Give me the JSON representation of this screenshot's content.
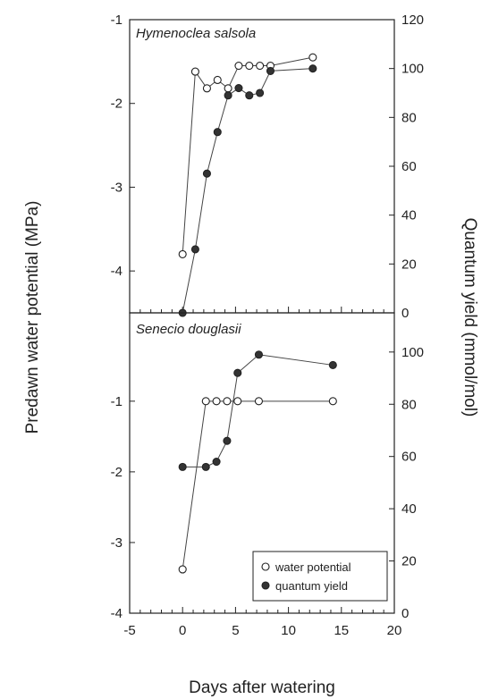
{
  "chart_data": [
    {
      "type": "scatter",
      "panel": "top",
      "title": "Hymenoclea salsola",
      "xlim": [
        -5,
        20
      ],
      "ylim_left": [
        -4.5,
        -1
      ],
      "ylim_right": [
        0,
        120
      ],
      "left_ticks": [
        -1,
        -2,
        -3,
        -4
      ],
      "right_ticks": [
        120,
        100,
        80,
        60,
        40,
        20,
        0
      ],
      "series": [
        {
          "name": "water potential",
          "axis": "left",
          "marker": "open-circle",
          "points": [
            [
              0,
              -3.8
            ],
            [
              1.2,
              -1.62
            ],
            [
              2.3,
              -1.82
            ],
            [
              3.3,
              -1.72
            ],
            [
              4.3,
              -1.82
            ],
            [
              5.3,
              -1.55
            ],
            [
              6.3,
              -1.55
            ],
            [
              7.3,
              -1.55
            ],
            [
              8.3,
              -1.55
            ],
            [
              12.3,
              -1.45
            ]
          ]
        },
        {
          "name": "quantum yield",
          "axis": "right",
          "marker": "filled-circle",
          "points": [
            [
              0,
              0
            ],
            [
              1.2,
              26
            ],
            [
              2.3,
              57
            ],
            [
              3.3,
              74
            ],
            [
              4.3,
              89
            ],
            [
              5.3,
              92
            ],
            [
              6.3,
              89
            ],
            [
              7.3,
              90
            ],
            [
              8.3,
              99
            ],
            [
              12.3,
              100
            ]
          ]
        }
      ]
    },
    {
      "type": "scatter",
      "panel": "bottom",
      "title": "Senecio douglasii",
      "xlim": [
        -5,
        20
      ],
      "ylim_left": [
        -4,
        0.25
      ],
      "ylim_right": [
        0,
        115
      ],
      "left_ticks": [
        -1,
        -2,
        -3,
        -4
      ],
      "right_ticks": [
        100,
        80,
        60,
        40,
        20,
        0
      ],
      "x_ticks": [
        -5,
        0,
        5,
        10,
        15,
        20
      ],
      "series": [
        {
          "name": "water potential",
          "axis": "left",
          "marker": "open-circle",
          "points": [
            [
              0,
              -3.38
            ],
            [
              2.2,
              -1.0
            ],
            [
              3.2,
              -1.0
            ],
            [
              4.2,
              -1.0
            ],
            [
              5.2,
              -1.0
            ],
            [
              7.2,
              -1.0
            ],
            [
              14.2,
              -1.0
            ]
          ]
        },
        {
          "name": "quantum yield",
          "axis": "right",
          "marker": "filled-circle",
          "points": [
            [
              0,
              56
            ],
            [
              2.2,
              56
            ],
            [
              3.2,
              58
            ],
            [
              4.2,
              66
            ],
            [
              5.2,
              92
            ],
            [
              7.2,
              99
            ],
            [
              14.2,
              95
            ]
          ]
        }
      ]
    }
  ],
  "axes": {
    "xlabel": "Days after watering",
    "ylabel_left": "Predawn water potential (MPa)",
    "ylabel_right": "Quantum yield (mmol/mol)"
  },
  "legend": {
    "placement": "bottom-right of lower panel",
    "items": [
      "water potential",
      "quantum yield"
    ]
  },
  "colors": {
    "axis": "#222222",
    "marker_stroke": "#222222",
    "filled_marker": "#333333",
    "line": "#444444"
  }
}
